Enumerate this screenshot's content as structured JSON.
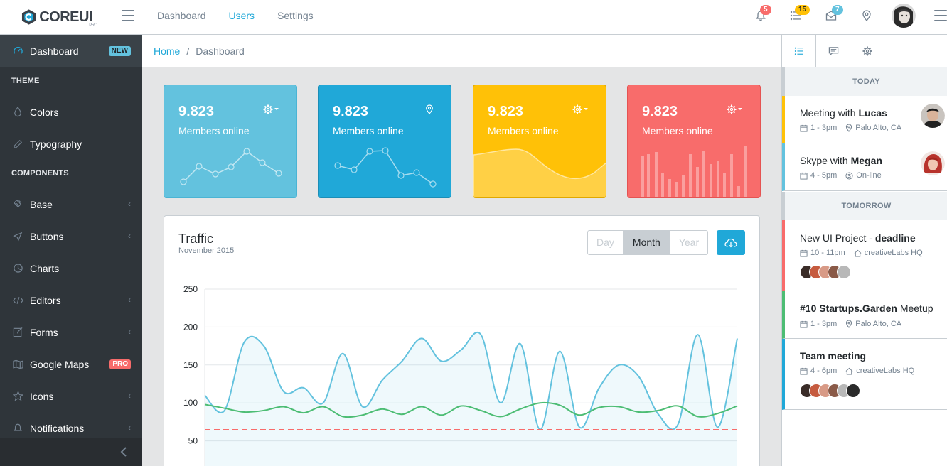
{
  "header": {
    "brand": "COREUI",
    "brand_sub": "PRO",
    "nav": [
      {
        "label": "Dashboard"
      },
      {
        "label": "Users"
      },
      {
        "label": "Settings"
      }
    ],
    "badges": {
      "notifications": "5",
      "tasks": "15",
      "messages": "7"
    },
    "colors": {
      "danger": "#f86c6b",
      "warning": "#ffc107",
      "info": "#63c2de"
    }
  },
  "sidebar": {
    "dashboard": {
      "label": "Dashboard",
      "badge": "NEW"
    },
    "theme_title": "THEME",
    "colors": "Colors",
    "typography": "Typography",
    "components_title": "COMPONENTS",
    "base": "Base",
    "buttons": "Buttons",
    "charts": "Charts",
    "editors": "Editors",
    "forms": "Forms",
    "google_maps": {
      "label": "Google Maps",
      "badge": "PRO"
    },
    "icons": "Icons",
    "notifications": "Notifications"
  },
  "breadcrumb": {
    "home": "Home",
    "sep": "/",
    "current": "Dashboard"
  },
  "cards": [
    {
      "value": "9.823",
      "label": "Members online",
      "color": "#63c2de"
    },
    {
      "value": "9.823",
      "label": "Members online",
      "color": "#20a8d8"
    },
    {
      "value": "9.823",
      "label": "Members online",
      "color": "#ffc107"
    },
    {
      "value": "9.823",
      "label": "Members online",
      "color": "#f86c6b"
    }
  ],
  "traffic": {
    "title": "Traffic",
    "subtitle": "November 2015",
    "periods": [
      "Day",
      "Month",
      "Year"
    ],
    "selected": "Month"
  },
  "chart_data": {
    "type": "line",
    "ylim": [
      0,
      250
    ],
    "yticks": [
      "250",
      "200",
      "150",
      "100",
      "50"
    ],
    "series": [
      {
        "color": "#63c2de",
        "values": [
          110,
          90,
          180,
          175,
          115,
          120,
          100,
          165,
          95,
          130,
          155,
          185,
          155,
          170,
          190,
          100,
          178,
          65,
          168,
          68,
          120,
          150,
          135,
          85,
          72,
          190,
          68,
          185
        ]
      },
      {
        "color": "#4dbd74",
        "values": [
          98,
          93,
          88,
          90,
          95,
          87,
          95,
          82,
          84,
          92,
          85,
          95,
          84,
          96,
          90,
          82,
          92,
          100,
          97,
          84,
          94,
          95,
          88,
          90,
          96,
          82,
          86,
          96
        ]
      },
      {
        "color": "#f86c6b",
        "values": [
          65,
          65,
          65,
          65,
          65,
          65,
          65,
          65,
          65,
          65,
          65,
          65,
          65,
          65,
          65,
          65,
          65,
          65,
          65,
          65,
          65,
          65,
          65,
          65,
          65,
          65,
          65,
          65
        ]
      }
    ]
  },
  "aside": {
    "today": "TODAY",
    "tomorrow": "TOMORROW",
    "events": [
      {
        "pre": "Meeting with ",
        "bold": "Lucas",
        "post": "",
        "time": "1 - 3pm",
        "place": "Palo Alto, CA",
        "color": "#ffc107"
      },
      {
        "pre": "Skype with ",
        "bold": "Megan",
        "post": "",
        "time": "4 - 5pm",
        "place": "On-line",
        "color": "#63c2de"
      },
      {
        "pre": "New UI Project - ",
        "bold": "deadline",
        "post": "",
        "time": "10 - 11pm",
        "place": "creativeLabs HQ",
        "color": "#f86c6b"
      },
      {
        "pre": "",
        "bold": "#10 Startups.Garden",
        "post": " Meetup",
        "time": "1 - 3pm",
        "place": "Palo Alto, CA",
        "color": "#4dbd74"
      },
      {
        "pre": "",
        "bold": "Team meeting",
        "post": "",
        "time": "4 - 6pm",
        "place": "creativeLabs HQ",
        "color": "#20a8d8"
      }
    ]
  }
}
